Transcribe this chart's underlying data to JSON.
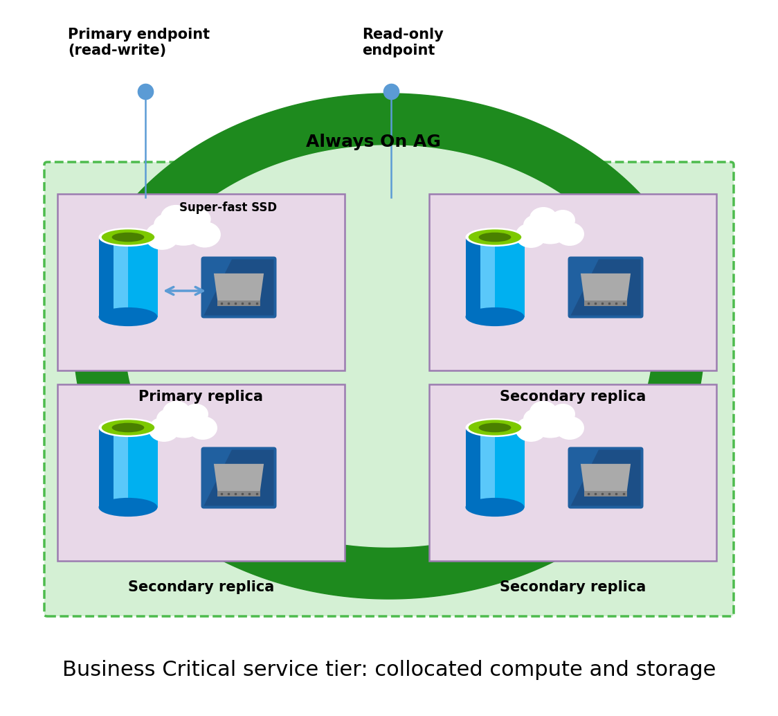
{
  "title": "Business Critical service tier: collocated compute and storage",
  "title_fontsize": 22,
  "primary_endpoint_label": "Primary endpoint\n(read-write)",
  "readonly_endpoint_label": "Read-only\nendpoint",
  "always_on_label": "Always On AG",
  "replica_labels": [
    "Primary replica",
    "Secondary replica",
    "Secondary replica",
    "Secondary replica"
  ],
  "ssd_label": "Super-fast SSD",
  "bg_color": "#ffffff",
  "green_ring_color": "#1E8A1E",
  "light_green_bg": "#d4f0d4",
  "dashed_border_color": "#4dbb4d",
  "replica_box_color": "#e8d8e8",
  "replica_box_border": "#9b7cb0",
  "endpoint_dot_color": "#5b9bd5",
  "endpoint_line_color": "#5b9bd5",
  "always_on_color": "#000000",
  "arrow_color": "#5b9bd5",
  "cyl_light": "#00b0f0",
  "cyl_mid": "#5ac8fa",
  "cyl_dark": "#0070c0",
  "cyl_top_rim": "#e0f8e0",
  "cyl_top_green": "#7dc900",
  "cyl_top_dark": "#4a8000",
  "ssd_bg": "#2060a0",
  "ssd_body": "#9a9a9a",
  "ssd_shadow": "#1a3f6f"
}
